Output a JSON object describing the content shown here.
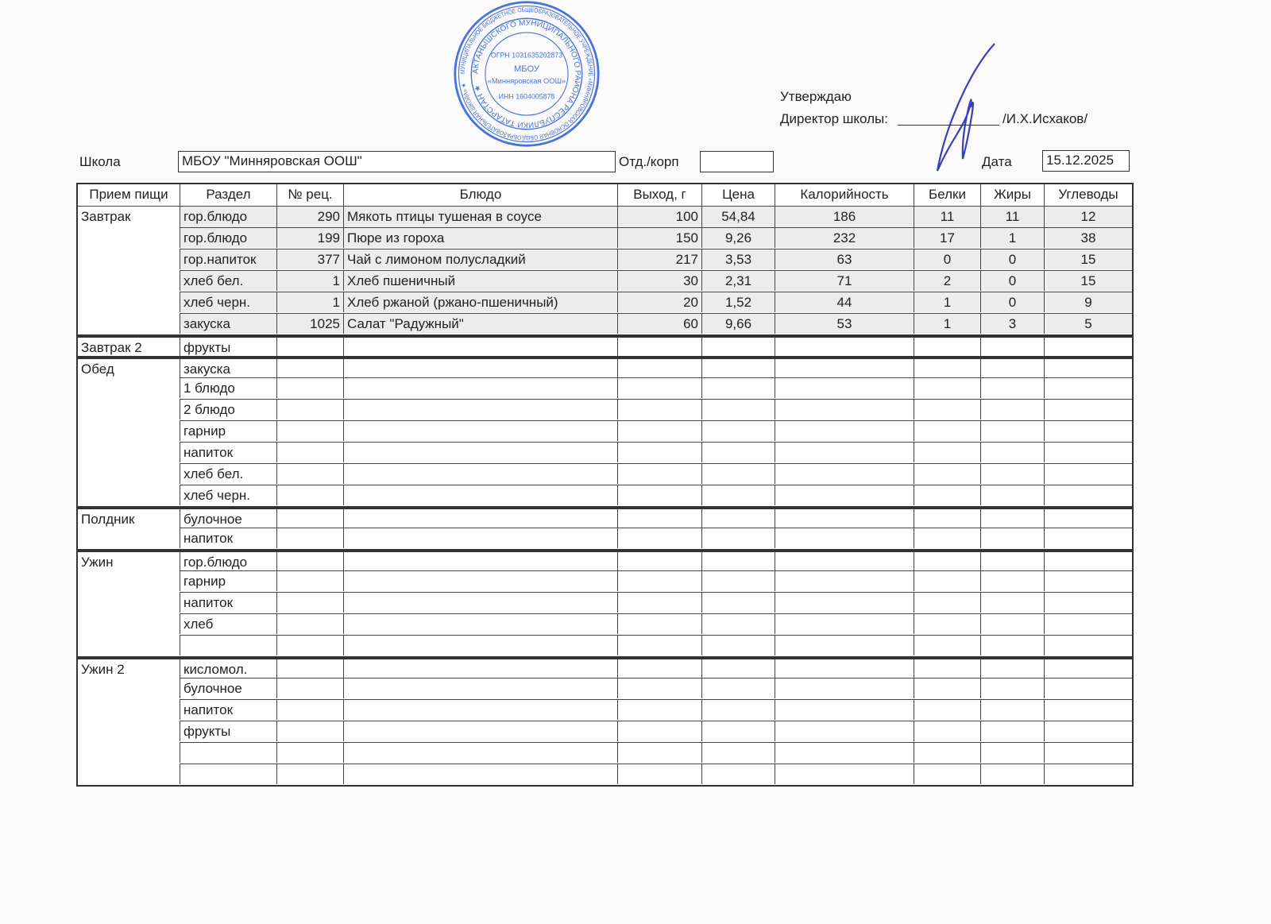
{
  "approval": {
    "approve_label": "Утверждаю",
    "director_label": "Директор школы:",
    "director_name": "/И.Х.Исхаков/"
  },
  "stamp": {
    "outer_text": "МУНИЦИПАЛЬНОЕ БЮДЖЕТНОЕ ОБЩЕОБРАЗОВАТЕЛЬНОЕ УЧРЕЖДЕНИЕ «МИННЯРОВСКАЯ ОСНОВНАЯ ОБЩЕОБРАЗОВАТЕЛЬНАЯ ШКОЛА» АКТАНЫШСКОГО МУНИЦИПАЛЬНОГО РАЙОНА РЕСПУБЛИКИ ТАТАРСТАН",
    "ogrn": "ОГРН 1031635202873",
    "inn": "ИНН 1604005878",
    "center_line1": "МБОУ",
    "center_line2": "«Минняровская ООШ»",
    "color": "#2a5bd7"
  },
  "header": {
    "school_label": "Школа",
    "school_value": "МБОУ \"Минняровская ООШ\"",
    "dept_label": "Отд./корп",
    "dept_value": "",
    "date_label": "Дата",
    "date_value": "15.12.2025"
  },
  "table": {
    "columns": [
      "Прием пищи",
      "Раздел",
      "№ рец.",
      "Блюдо",
      "Выход, г",
      "Цена",
      "Калорийность",
      "Белки",
      "Жиры",
      "Углеводы"
    ],
    "groups": [
      {
        "meal": "Завтрак",
        "rows": [
          {
            "section": "гор.блюдо",
            "recipe": "290",
            "dish": "Мякоть птицы тушеная в соусе",
            "yield": "100",
            "price": "54,84",
            "kcal": "186",
            "protein": "11",
            "fat": "11",
            "carbs": "12"
          },
          {
            "section": "гор.блюдо",
            "recipe": "199",
            "dish": "Пюре из гороха",
            "yield": "150",
            "price": "9,26",
            "kcal": "232",
            "protein": "17",
            "fat": "1",
            "carbs": "38"
          },
          {
            "section": "гор.напиток",
            "recipe": "377",
            "dish": "Чай с лимоном полусладкий",
            "yield": "217",
            "price": "3,53",
            "kcal": "63",
            "protein": "0",
            "fat": "0",
            "carbs": "15"
          },
          {
            "section": "хлеб бел.",
            "recipe": "1",
            "dish": "Хлеб пшеничный",
            "yield": "30",
            "price": "2,31",
            "kcal": "71",
            "protein": "2",
            "fat": "0",
            "carbs": "15"
          },
          {
            "section": "хлеб черн.",
            "recipe": "1",
            "dish": "Хлеб ржаной (ржано-пшеничный)",
            "yield": "20",
            "price": "1,52",
            "kcal": "44",
            "protein": "1",
            "fat": "0",
            "carbs": "9"
          },
          {
            "section": "закуска",
            "recipe": "1025",
            "dish": "Салат \"Радужный\"",
            "yield": "60",
            "price": "9,66",
            "kcal": "53",
            "protein": "1",
            "fat": "3",
            "carbs": "5"
          }
        ]
      },
      {
        "meal": "Завтрак 2",
        "rows": [
          {
            "section": "фрукты"
          }
        ]
      },
      {
        "meal": "Обед",
        "rows": [
          {
            "section": "закуска"
          },
          {
            "section": "1 блюдо"
          },
          {
            "section": "2 блюдо"
          },
          {
            "section": "гарнир"
          },
          {
            "section": "напиток"
          },
          {
            "section": "хлеб бел."
          },
          {
            "section": "хлеб черн."
          }
        ]
      },
      {
        "meal": "Полдник",
        "rows": [
          {
            "section": "булочное"
          },
          {
            "section": "напиток"
          }
        ]
      },
      {
        "meal": "Ужин",
        "rows": [
          {
            "section": "гор.блюдо"
          },
          {
            "section": "гарнир"
          },
          {
            "section": "напиток"
          },
          {
            "section": "хлеб"
          },
          {
            "section": ""
          }
        ]
      },
      {
        "meal": "Ужин 2",
        "rows": [
          {
            "section": "кисломол."
          },
          {
            "section": "булочное"
          },
          {
            "section": "напиток"
          },
          {
            "section": "фрукты"
          },
          {
            "section": ""
          },
          {
            "section": ""
          }
        ]
      }
    ]
  }
}
